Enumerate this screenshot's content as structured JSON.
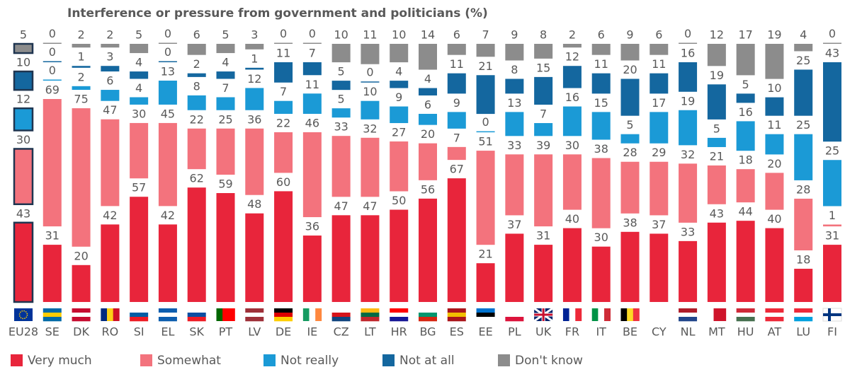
{
  "chart_data": {
    "type": "bar",
    "stacked": true,
    "title": "Interference or pressure from government and politicians (%)",
    "categories": [
      "EU28",
      "SE",
      "DK",
      "RO",
      "SI",
      "EL",
      "SK",
      "PT",
      "LV",
      "DE",
      "IE",
      "CZ",
      "LT",
      "HR",
      "BG",
      "ES",
      "EE",
      "PL",
      "UK",
      "FR",
      "IT",
      "BE",
      "CY",
      "NL",
      "MT",
      "HU",
      "AT",
      "LU",
      "FI"
    ],
    "series": [
      {
        "name": "Very much",
        "color": "#e8253b",
        "values": [
          43,
          31,
          20,
          42,
          57,
          42,
          62,
          59,
          48,
          60,
          36,
          47,
          47,
          50,
          56,
          67,
          21,
          37,
          31,
          40,
          30,
          38,
          37,
          33,
          43,
          44,
          40,
          18,
          31
        ]
      },
      {
        "name": "Somewhat",
        "color": "#f3737d",
        "values": [
          30,
          69,
          75,
          47,
          30,
          45,
          22,
          25,
          36,
          22,
          46,
          33,
          32,
          27,
          20,
          7,
          51,
          33,
          39,
          30,
          38,
          28,
          29,
          32,
          21,
          18,
          20,
          28,
          1
        ]
      },
      {
        "name": "Not really",
        "color": "#1b9ad6",
        "values": [
          12,
          0,
          2,
          6,
          4,
          13,
          8,
          7,
          12,
          7,
          11,
          5,
          10,
          9,
          6,
          9,
          0,
          13,
          7,
          16,
          15,
          5,
          17,
          19,
          5,
          16,
          11,
          25,
          25
        ]
      },
      {
        "name": "Not at all",
        "color": "#14679f",
        "values": [
          10,
          0,
          1,
          3,
          4,
          0,
          2,
          4,
          1,
          11,
          7,
          5,
          0,
          4,
          4,
          11,
          21,
          8,
          15,
          12,
          11,
          20,
          11,
          16,
          19,
          5,
          10,
          25,
          43
        ]
      },
      {
        "name": "Don't know",
        "color": "#8c8c8c",
        "values": [
          5,
          0,
          2,
          2,
          5,
          0,
          6,
          5,
          3,
          0,
          0,
          10,
          11,
          10,
          14,
          6,
          7,
          9,
          8,
          2,
          6,
          9,
          6,
          0,
          12,
          17,
          19,
          4,
          0
        ]
      }
    ]
  }
}
